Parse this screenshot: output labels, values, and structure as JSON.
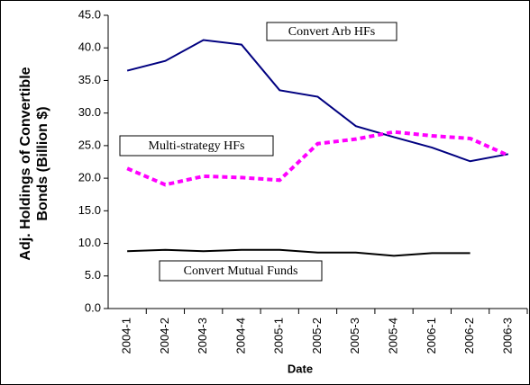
{
  "chart_data": {
    "type": "line",
    "y_label": "Adj. Holdings of Convertible Bonds (Billion $)",
    "x_label": "Date",
    "categories": [
      "2004-1",
      "2004-2",
      "2004-3",
      "2004-4",
      "2005-1",
      "2005-2",
      "2005-3",
      "2005-4",
      "2006-1",
      "2006-2",
      "2006-3"
    ],
    "series": [
      {
        "name": "Convert Arb HFs",
        "color": "#000080",
        "dashed": false,
        "values": [
          36.5,
          38.0,
          41.2,
          40.5,
          33.5,
          32.5,
          28.0,
          26.3,
          24.7,
          22.6,
          23.7
        ]
      },
      {
        "name": "Multi-strategy HFs",
        "color": "#ff00ff",
        "dashed": true,
        "values": [
          21.5,
          19.0,
          20.3,
          20.1,
          19.7,
          25.3,
          26.0,
          27.1,
          26.5,
          26.1,
          23.5
        ]
      },
      {
        "name": "Convert Mutual Funds",
        "color": "#000000",
        "dashed": false,
        "values": [
          8.8,
          9.0,
          8.8,
          9.0,
          9.0,
          8.6,
          8.6,
          8.1,
          8.5,
          8.5,
          null
        ]
      }
    ],
    "ylim": [
      0,
      45
    ],
    "yticks": [
      {
        "value": 0,
        "label": "0.0"
      },
      {
        "value": 5,
        "label": "5.0"
      },
      {
        "value": 10,
        "label": "10.0"
      },
      {
        "value": 15,
        "label": "15.0"
      },
      {
        "value": 20,
        "label": "20.0"
      },
      {
        "value": 25,
        "label": "25.0"
      },
      {
        "value": 30,
        "label": "30.0"
      },
      {
        "value": 35,
        "label": "35.0"
      },
      {
        "value": 40,
        "label": "40.0"
      },
      {
        "value": 45,
        "label": "45.0"
      }
    ]
  }
}
